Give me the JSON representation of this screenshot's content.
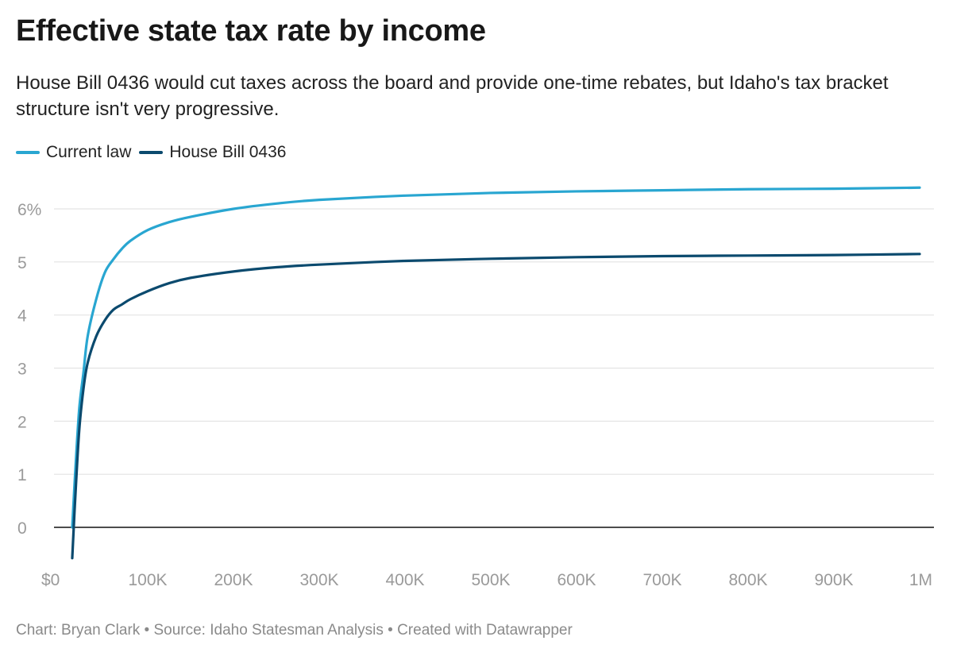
{
  "header": {
    "title": "Effective state tax rate by income",
    "subtitle": "House Bill 0436 would cut taxes across the board and provide one-time rebates, but Idaho's tax bracket structure isn't very progressive."
  },
  "legend": {
    "items": [
      {
        "label": "Current law",
        "color": "#29a6d1"
      },
      {
        "label": "House Bill 0436",
        "color": "#0b4a6e"
      }
    ]
  },
  "footer": {
    "text": "Chart: Bryan Clark • Source: Idaho Statesman Analysis • Created with Datawrapper"
  },
  "chart_data": {
    "type": "line",
    "title": "Effective state tax rate by income",
    "xlabel": "",
    "ylabel": "",
    "xlim": [
      0,
      1000000
    ],
    "ylim": [
      -0.6,
      6.5
    ],
    "grid": true,
    "legend_position": "top-left",
    "x_ticks": [
      {
        "value": 0,
        "label": "$0"
      },
      {
        "value": 100000,
        "label": "100K"
      },
      {
        "value": 200000,
        "label": "200K"
      },
      {
        "value": 300000,
        "label": "300K"
      },
      {
        "value": 400000,
        "label": "400K"
      },
      {
        "value": 500000,
        "label": "500K"
      },
      {
        "value": 600000,
        "label": "600K"
      },
      {
        "value": 700000,
        "label": "700K"
      },
      {
        "value": 800000,
        "label": "800K"
      },
      {
        "value": 900000,
        "label": "900K"
      },
      {
        "value": 1000000,
        "label": "1M"
      }
    ],
    "y_ticks": [
      {
        "value": 0,
        "label": "0"
      },
      {
        "value": 1,
        "label": "1"
      },
      {
        "value": 2,
        "label": "2"
      },
      {
        "value": 3,
        "label": "3"
      },
      {
        "value": 4,
        "label": "4"
      },
      {
        "value": 5,
        "label": "5"
      },
      {
        "value": 6,
        "label": "6%"
      }
    ],
    "series": [
      {
        "name": "Current law",
        "color": "#29a6d1",
        "x": [
          12000,
          15000,
          20000,
          25000,
          30000,
          40000,
          50000,
          60000,
          70000,
          80000,
          100000,
          125000,
          150000,
          200000,
          250000,
          300000,
          400000,
          500000,
          600000,
          700000,
          800000,
          900000,
          1000000
        ],
        "y": [
          0.0,
          0.9,
          2.2,
          2.9,
          3.6,
          4.3,
          4.8,
          5.05,
          5.25,
          5.4,
          5.6,
          5.75,
          5.85,
          6.0,
          6.1,
          6.17,
          6.25,
          6.3,
          6.33,
          6.35,
          6.37,
          6.38,
          6.4
        ]
      },
      {
        "name": "House Bill 0436",
        "color": "#0b4a6e",
        "x": [
          12000,
          15000,
          20000,
          25000,
          30000,
          40000,
          50000,
          60000,
          70000,
          80000,
          100000,
          125000,
          150000,
          200000,
          250000,
          300000,
          400000,
          500000,
          600000,
          700000,
          800000,
          900000,
          1000000
        ],
        "y": [
          -0.58,
          0.4,
          1.8,
          2.6,
          3.1,
          3.6,
          3.9,
          4.1,
          4.2,
          4.3,
          4.45,
          4.6,
          4.7,
          4.82,
          4.9,
          4.95,
          5.02,
          5.06,
          5.09,
          5.11,
          5.12,
          5.13,
          5.15
        ]
      }
    ]
  }
}
